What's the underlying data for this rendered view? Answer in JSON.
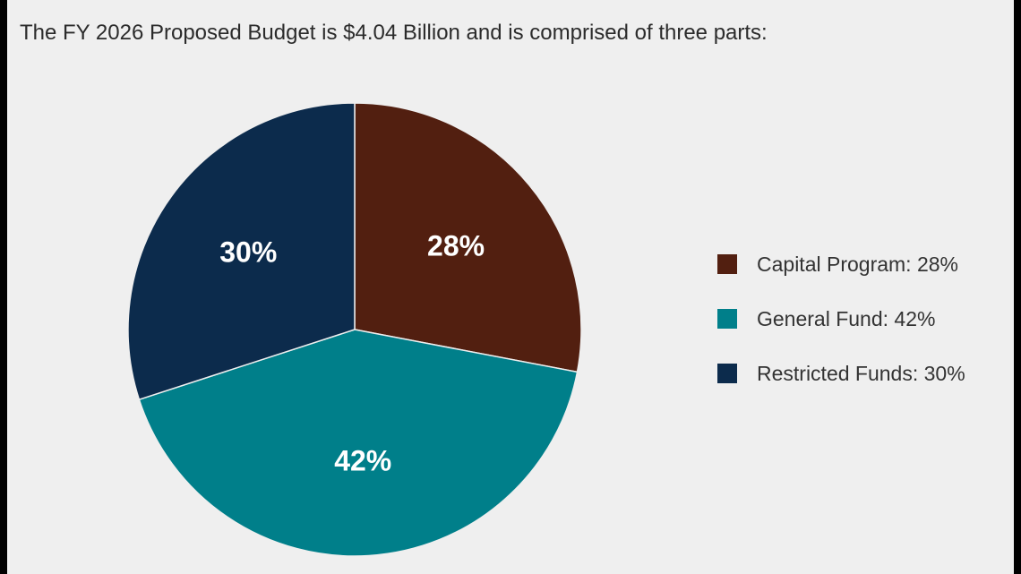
{
  "header": {
    "title": "The FY 2026 Proposed Budget is $4.04 Billion and is comprised of three parts:"
  },
  "chart_data": {
    "type": "pie",
    "title": "",
    "slices": [
      {
        "name": "Capital Program",
        "value": 28,
        "label": "28%",
        "legend": "Capital Program: 28%",
        "color": "#521f10"
      },
      {
        "name": "General Fund",
        "value": 42,
        "label": "42%",
        "legend": "General Fund: 42%",
        "color": "#007f8a"
      },
      {
        "name": "Restricted Funds",
        "value": 30,
        "label": "30%",
        "legend": "Restricted Funds: 30%",
        "color": "#0c2b4c"
      }
    ],
    "start_angle": "12 o'clock",
    "direction": "clockwise",
    "legend_position": "right"
  }
}
